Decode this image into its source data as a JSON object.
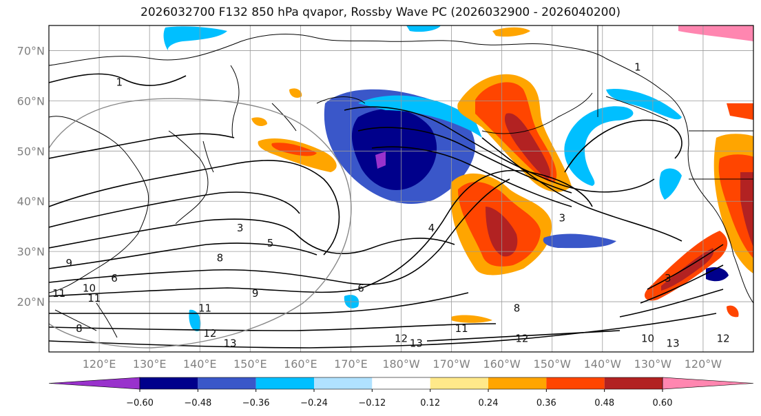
{
  "title": "2026032700 F132 850 hPa qvapor, Rossby Wave PC (2026032900 - 2026040200)",
  "chart_data": {
    "type": "map",
    "lat_range": [
      10,
      75
    ],
    "lon_range_east": [
      110,
      250
    ],
    "lat_ticks": [
      {
        "value": 20,
        "label": "20°N"
      },
      {
        "value": 30,
        "label": "30°N"
      },
      {
        "value": 40,
        "label": "40°N"
      },
      {
        "value": 50,
        "label": "50°N"
      },
      {
        "value": 60,
        "label": "60°N"
      },
      {
        "value": 70,
        "label": "70°N"
      }
    ],
    "lon_ticks": [
      {
        "value": 120,
        "label": "120°E"
      },
      {
        "value": 130,
        "label": "130°E"
      },
      {
        "value": 140,
        "label": "140°E"
      },
      {
        "value": 150,
        "label": "150°E"
      },
      {
        "value": 160,
        "label": "160°E"
      },
      {
        "value": 170,
        "label": "170°E"
      },
      {
        "value": 180,
        "label": "180°W"
      },
      {
        "value": 190,
        "label": "170°W"
      },
      {
        "value": 200,
        "label": "160°W"
      },
      {
        "value": 210,
        "label": "150°W"
      },
      {
        "value": 220,
        "label": "140°W"
      },
      {
        "value": 230,
        "label": "130°W"
      },
      {
        "value": 240,
        "label": "120°W"
      }
    ],
    "contour_labels": [
      {
        "text": "1",
        "lon": 124,
        "lat": 63
      },
      {
        "text": "1",
        "lon": 227,
        "lat": 66
      },
      {
        "text": "3",
        "lon": 148,
        "lat": 34
      },
      {
        "text": "3",
        "lon": 212,
        "lat": 36
      },
      {
        "text": "3",
        "lon": 233,
        "lat": 24
      },
      {
        "text": "4",
        "lon": 186,
        "lat": 34
      },
      {
        "text": "5",
        "lon": 154,
        "lat": 31
      },
      {
        "text": "6",
        "lon": 123,
        "lat": 24
      },
      {
        "text": "6",
        "lon": 172,
        "lat": 22
      },
      {
        "text": "8",
        "lon": 144,
        "lat": 28
      },
      {
        "text": "8",
        "lon": 116,
        "lat": 14
      },
      {
        "text": "8",
        "lon": 203,
        "lat": 18
      },
      {
        "text": "9",
        "lon": 114,
        "lat": 27
      },
      {
        "text": "9",
        "lon": 151,
        "lat": 21
      },
      {
        "text": "10",
        "lon": 118,
        "lat": 22
      },
      {
        "text": "11",
        "lon": 112,
        "lat": 21
      },
      {
        "text": "11",
        "lon": 119,
        "lat": 20
      },
      {
        "text": "11",
        "lon": 141,
        "lat": 18
      },
      {
        "text": "11",
        "lon": 192,
        "lat": 14
      },
      {
        "text": "12",
        "lon": 142,
        "lat": 13
      },
      {
        "text": "12",
        "lon": 180,
        "lat": 12
      },
      {
        "text": "12",
        "lon": 204,
        "lat": 12
      },
      {
        "text": "12",
        "lon": 244,
        "lat": 12
      },
      {
        "text": "13",
        "lon": 146,
        "lat": 11
      },
      {
        "text": "13",
        "lon": 183,
        "lat": 11
      },
      {
        "text": "13",
        "lon": 234,
        "lat": 11
      },
      {
        "text": "10",
        "lon": 229,
        "lat": 12
      }
    ],
    "colorbar": {
      "levels": [
        -0.6,
        -0.48,
        -0.36,
        -0.24,
        -0.12,
        0.12,
        0.24,
        0.36,
        0.48,
        0.6
      ],
      "tick_labels": [
        "−0.60",
        "−0.48",
        "−0.36",
        "−0.24",
        "−0.12",
        "0.12",
        "0.24",
        "0.36",
        "0.48",
        "0.60"
      ],
      "colors": [
        "#9932cc",
        "#00008b",
        "#3a57c9",
        "#00bfff",
        "#b0e2ff",
        "#ffffff",
        "#ffe98a",
        "#ffa500",
        "#ff4500",
        "#b22222",
        "#ff86b0"
      ]
    }
  }
}
